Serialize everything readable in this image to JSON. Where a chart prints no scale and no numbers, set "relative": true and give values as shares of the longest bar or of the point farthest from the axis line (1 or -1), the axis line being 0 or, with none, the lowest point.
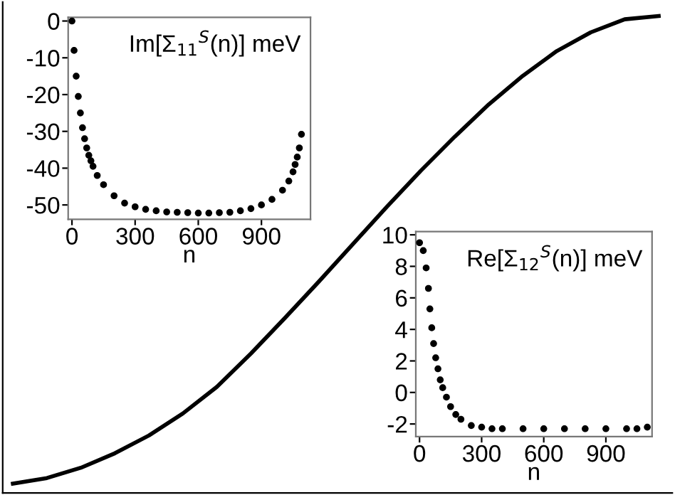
{
  "chart_data": [
    {
      "type": "line",
      "categories": [
        null,
        null,
        null,
        null,
        null,
        null,
        null,
        null,
        null,
        null,
        null,
        null,
        null,
        null,
        null,
        null,
        null,
        null,
        null,
        null
      ],
      "relative": true,
      "color": "#000000",
      "values": [
        0,
        0.012,
        0.034,
        0.065,
        0.103,
        0.15,
        0.207,
        0.278,
        0.354,
        0.432,
        0.512,
        0.592,
        0.669,
        0.742,
        0.811,
        0.872,
        0.925,
        0.965,
        0.993,
        1.0
      ]
    },
    {
      "type": "scatter",
      "title": "Im[Σ$_{11}$$^{S}$(n)] meV",
      "xlabel": "n",
      "marker": "circle",
      "color": "#000000",
      "x": [
        0,
        10,
        20,
        30,
        40,
        50,
        60,
        70,
        80,
        90,
        100,
        120,
        150,
        200,
        250,
        300,
        350,
        400,
        450,
        500,
        550,
        600,
        650,
        700,
        750,
        800,
        850,
        900,
        950,
        1000,
        1030,
        1050,
        1060,
        1070,
        1080,
        1090
      ],
      "values": [
        0,
        -8,
        -15,
        -20.5,
        -25,
        -29,
        -32,
        -34.5,
        -36.5,
        -38,
        -39.5,
        -42,
        -44.5,
        -47.5,
        -49.5,
        -50.5,
        -51.2,
        -51.6,
        -51.9,
        -52,
        -52.1,
        -52.2,
        -52.2,
        -52.1,
        -52,
        -51.6,
        -51,
        -50,
        -48.5,
        -46,
        -43.5,
        -41,
        -39,
        -37,
        -34.5,
        -30.8
      ],
      "xlim": [
        -18,
        1133
      ],
      "ylim": [
        -53.9,
        1
      ],
      "xticks": [
        0,
        300,
        600,
        900
      ],
      "yticks": [
        0,
        -10,
        -20,
        -30,
        -40,
        -50
      ]
    },
    {
      "type": "scatter",
      "title": "Re[Σ$_{12}$$^{S}$(n)] meV",
      "xlabel": "n",
      "marker": "circle",
      "color": "#000000",
      "x": [
        0,
        18,
        32,
        43,
        50,
        59,
        68,
        78,
        89,
        100,
        112,
        130,
        150,
        175,
        200,
        250,
        300,
        350,
        400,
        500,
        600,
        700,
        800,
        900,
        1000,
        1050,
        1100
      ],
      "values": [
        9.5,
        9.0,
        7.9,
        6.6,
        5.3,
        4.1,
        3.1,
        2.2,
        1.5,
        0.8,
        0.3,
        -0.3,
        -0.9,
        -1.4,
        -1.7,
        -2.1,
        -2.2,
        -2.3,
        -2.3,
        -2.3,
        -2.3,
        -2.3,
        -2.3,
        -2.3,
        -2.3,
        -2.3,
        -2.2
      ],
      "xlim": [
        -18,
        1123
      ],
      "ylim": [
        -2.8,
        10.2
      ],
      "xticks": [
        0,
        300,
        600,
        900
      ],
      "yticks": [
        -2,
        0,
        2,
        4,
        6,
        8,
        10
      ]
    }
  ]
}
